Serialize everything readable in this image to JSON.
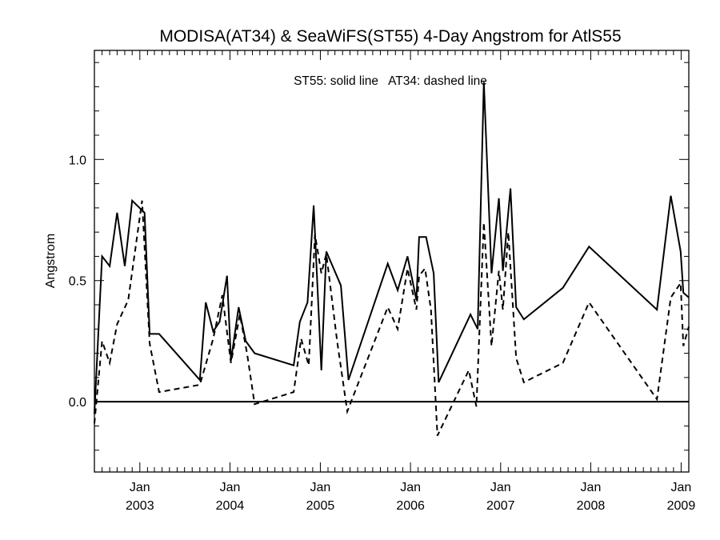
{
  "chart_data": {
    "type": "line",
    "title": "MODISA(AT34) & SeaWiFS(ST55) 4-Day Angstrom for AtlS55",
    "annotation": "ST55: solid line   AT34: dashed line",
    "ylabel": "Angstrom",
    "xlabel": "",
    "xlim": [
      "2002-07-01",
      "2009-02-01"
    ],
    "ylim": [
      -0.29,
      1.45
    ],
    "zero_line": 0.0,
    "grid": false,
    "y_ticks": [
      {
        "value": 0.0,
        "label": "0.0"
      },
      {
        "value": 0.5,
        "label": "0.5"
      },
      {
        "value": 1.0,
        "label": "1.0"
      }
    ],
    "x_ticks": [
      {
        "date": "2003-01-01",
        "month": "Jan",
        "year": "2003"
      },
      {
        "date": "2004-01-01",
        "month": "Jan",
        "year": "2004"
      },
      {
        "date": "2005-01-01",
        "month": "Jan",
        "year": "2005"
      },
      {
        "date": "2006-01-01",
        "month": "Jan",
        "year": "2006"
      },
      {
        "date": "2007-01-01",
        "month": "Jan",
        "year": "2007"
      },
      {
        "date": "2008-01-01",
        "month": "Jan",
        "year": "2008"
      },
      {
        "date": "2009-01-01",
        "month": "Jan",
        "year": "2009"
      }
    ],
    "series": [
      {
        "name": "ST55",
        "style": "solid",
        "color": "#000000",
        "points": [
          [
            "2002-07-01",
            -0.05
          ],
          [
            "2002-08-01",
            0.6
          ],
          [
            "2002-09-01",
            0.56
          ],
          [
            "2002-10-01",
            0.78
          ],
          [
            "2002-11-01",
            0.56
          ],
          [
            "2002-12-01",
            0.83
          ],
          [
            "2003-01-20",
            0.78
          ],
          [
            "2003-02-10",
            0.28
          ],
          [
            "2003-03-20",
            0.28
          ],
          [
            "2003-09-01",
            0.09
          ],
          [
            "2003-09-25",
            0.41
          ],
          [
            "2003-10-25",
            0.29
          ],
          [
            "2003-11-20",
            0.33
          ],
          [
            "2003-12-20",
            0.52
          ],
          [
            "2004-01-05",
            0.17
          ],
          [
            "2004-02-05",
            0.39
          ],
          [
            "2004-03-05",
            0.25
          ],
          [
            "2004-04-10",
            0.2
          ],
          [
            "2004-09-15",
            0.15
          ],
          [
            "2004-10-10",
            0.33
          ],
          [
            "2004-11-10",
            0.41
          ],
          [
            "2004-12-05",
            0.81
          ],
          [
            "2005-01-05",
            0.13
          ],
          [
            "2005-01-25",
            0.62
          ],
          [
            "2005-03-25",
            0.48
          ],
          [
            "2005-04-25",
            0.09
          ],
          [
            "2005-10-01",
            0.57
          ],
          [
            "2005-11-10",
            0.46
          ],
          [
            "2005-12-20",
            0.6
          ],
          [
            "2006-01-25",
            0.42
          ],
          [
            "2006-02-05",
            0.68
          ],
          [
            "2006-03-05",
            0.68
          ],
          [
            "2006-04-05",
            0.53
          ],
          [
            "2006-04-25",
            0.08
          ],
          [
            "2006-09-01",
            0.36
          ],
          [
            "2006-09-30",
            0.3
          ],
          [
            "2006-10-25",
            1.32
          ],
          [
            "2006-11-25",
            0.53
          ],
          [
            "2006-12-25",
            0.84
          ],
          [
            "2007-01-10",
            0.54
          ],
          [
            "2007-02-10",
            0.88
          ],
          [
            "2007-03-05",
            0.39
          ],
          [
            "2007-04-05",
            0.34
          ],
          [
            "2007-09-10",
            0.47
          ],
          [
            "2007-12-25",
            0.64
          ],
          [
            "2008-09-25",
            0.38
          ],
          [
            "2008-11-20",
            0.85
          ],
          [
            "2008-12-30",
            0.62
          ],
          [
            "2009-01-10",
            0.45
          ],
          [
            "2009-02-01",
            0.43
          ]
        ]
      },
      {
        "name": "AT34",
        "style": "dashed",
        "color": "#000000",
        "points": [
          [
            "2002-07-01",
            -0.09
          ],
          [
            "2002-08-01",
            0.25
          ],
          [
            "2002-09-01",
            0.16
          ],
          [
            "2002-10-01",
            0.32
          ],
          [
            "2002-11-15",
            0.42
          ],
          [
            "2003-01-10",
            0.83
          ],
          [
            "2003-02-10",
            0.24
          ],
          [
            "2003-03-20",
            0.04
          ],
          [
            "2003-09-01",
            0.07
          ],
          [
            "2003-10-25",
            0.26
          ],
          [
            "2003-12-01",
            0.44
          ],
          [
            "2004-01-05",
            0.16
          ],
          [
            "2004-02-10",
            0.36
          ],
          [
            "2004-03-10",
            0.2
          ],
          [
            "2004-04-10",
            -0.01
          ],
          [
            "2004-09-15",
            0.04
          ],
          [
            "2004-10-15",
            0.26
          ],
          [
            "2004-11-15",
            0.15
          ],
          [
            "2004-12-10",
            0.69
          ],
          [
            "2005-01-05",
            0.53
          ],
          [
            "2005-01-25",
            0.61
          ],
          [
            "2005-03-10",
            0.25
          ],
          [
            "2005-04-20",
            -0.04
          ],
          [
            "2005-10-01",
            0.39
          ],
          [
            "2005-11-10",
            0.3
          ],
          [
            "2005-12-20",
            0.55
          ],
          [
            "2006-01-25",
            0.38
          ],
          [
            "2006-02-05",
            0.52
          ],
          [
            "2006-03-01",
            0.55
          ],
          [
            "2006-03-25",
            0.38
          ],
          [
            "2006-04-20",
            -0.14
          ],
          [
            "2006-08-25",
            0.13
          ],
          [
            "2006-09-25",
            -0.02
          ],
          [
            "2006-10-25",
            0.74
          ],
          [
            "2006-11-25",
            0.23
          ],
          [
            "2006-12-25",
            0.54
          ],
          [
            "2007-01-10",
            0.38
          ],
          [
            "2007-02-01",
            0.7
          ],
          [
            "2007-03-05",
            0.18
          ],
          [
            "2007-04-05",
            0.08
          ],
          [
            "2007-09-10",
            0.16
          ],
          [
            "2007-12-25",
            0.41
          ],
          [
            "2008-09-25",
            0.01
          ],
          [
            "2008-11-20",
            0.43
          ],
          [
            "2008-12-30",
            0.49
          ],
          [
            "2009-01-10",
            0.23
          ],
          [
            "2009-02-01",
            0.31
          ]
        ]
      }
    ]
  }
}
